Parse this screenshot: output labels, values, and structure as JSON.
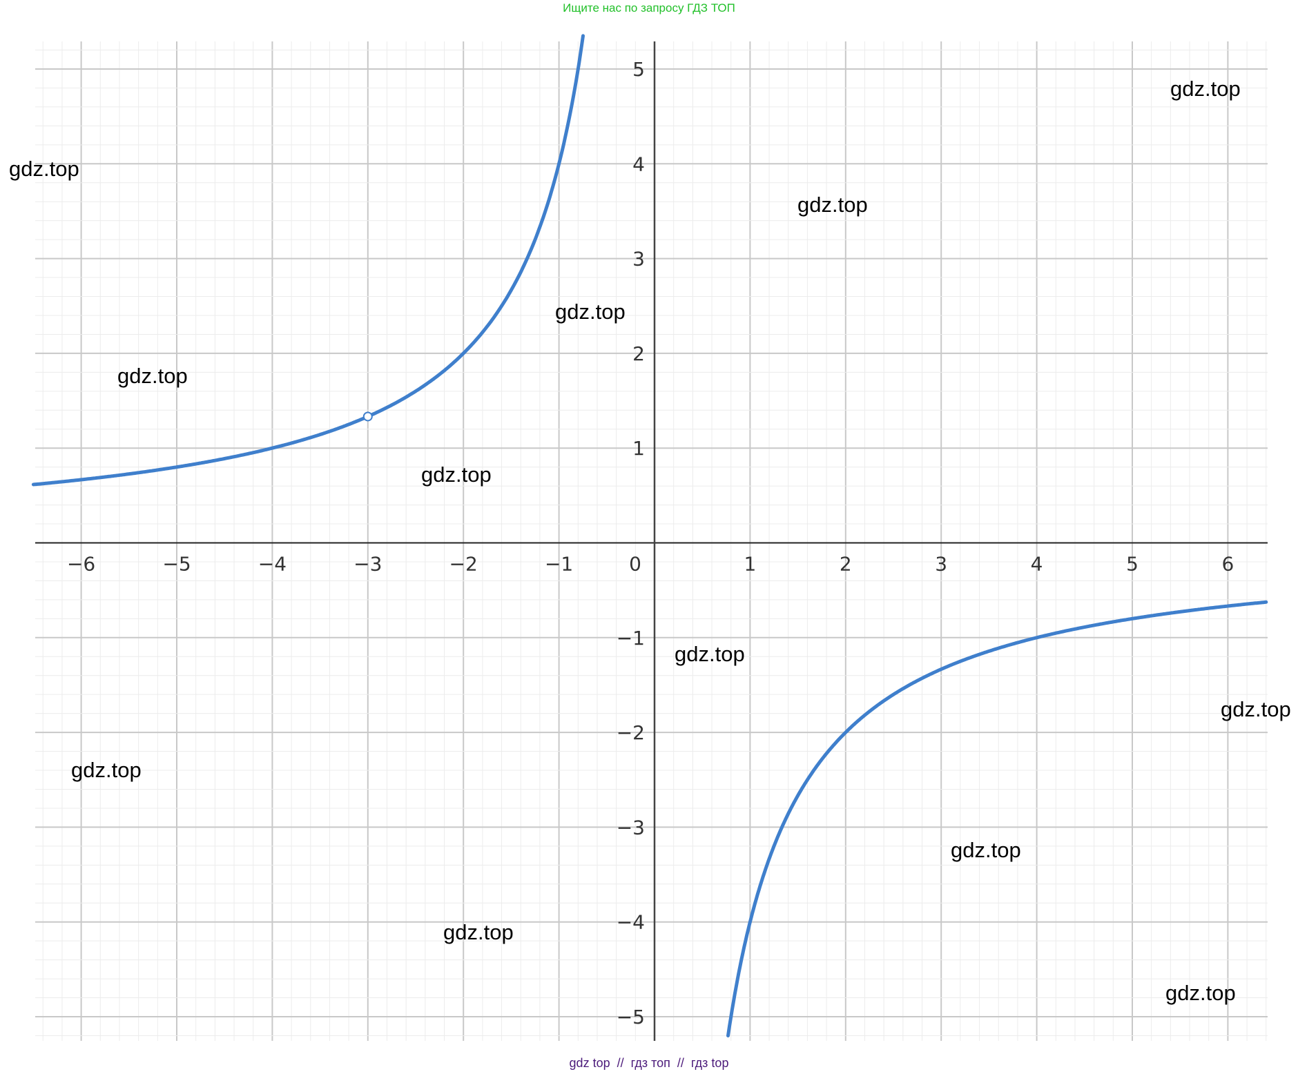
{
  "header_text": "Ищите нас по запросу ГДЗ ТОП",
  "footer_text": "gdz top  //  гдз топ  //  гдз top",
  "watermark": "gdz.top",
  "chart_data": {
    "type": "line",
    "function": "y = -4/x",
    "xlim": [
      -6.5,
      6.4
    ],
    "ylim": [
      -5.3,
      5.3
    ],
    "x_ticks": [
      "−6",
      "−5",
      "−4",
      "−3",
      "−2",
      "−1",
      "0",
      "1",
      "2",
      "3",
      "4",
      "5",
      "6"
    ],
    "y_ticks": [
      "5",
      "4",
      "3",
      "2",
      "1",
      "−1",
      "−2",
      "−3",
      "−4",
      "−5"
    ],
    "grid": true,
    "minor_grid_subdivisions": 5,
    "curve_color": "#3f7fcc",
    "excluded_point": {
      "x": -3,
      "y": 1.3333
    },
    "series": [
      {
        "values_sample": [
          [
            -6,
            0.667
          ],
          [
            -5,
            0.8
          ],
          [
            -4,
            1
          ],
          [
            -3,
            1.333
          ],
          [
            -2,
            2
          ],
          [
            -1,
            4
          ],
          [
            1,
            -4
          ],
          [
            2,
            -2
          ],
          [
            3,
            -1.333
          ],
          [
            4,
            -1
          ],
          [
            5,
            -0.8
          ],
          [
            6,
            -0.667
          ]
        ]
      }
    ]
  }
}
